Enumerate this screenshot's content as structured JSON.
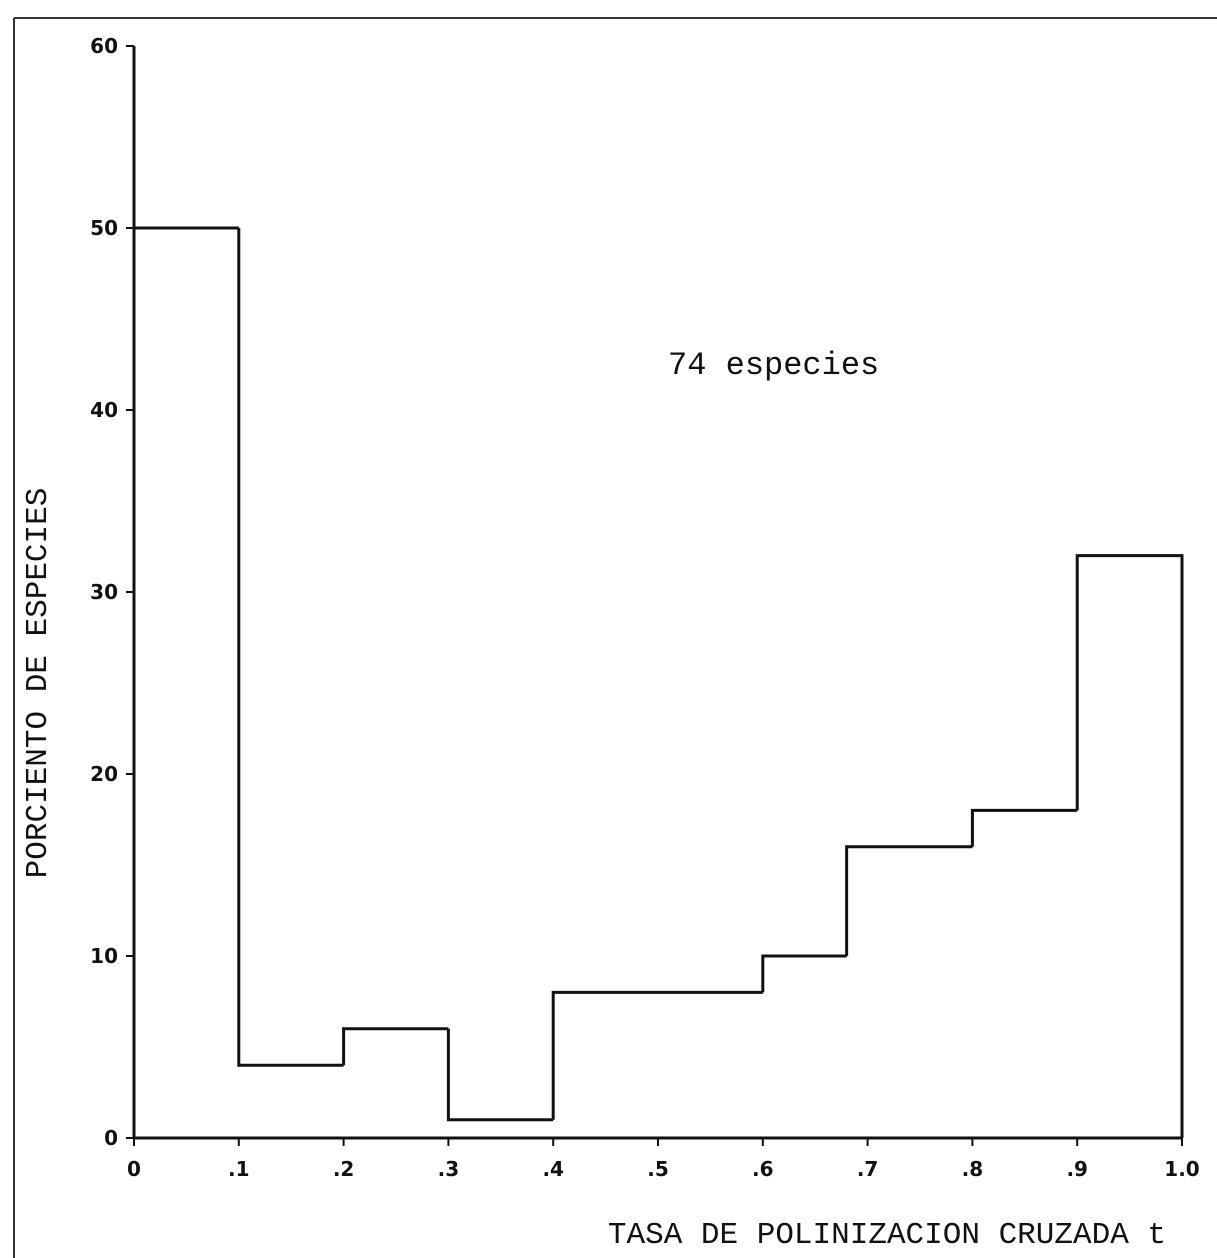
{
  "chart_data": {
    "type": "bar",
    "bin_edges": [
      0,
      0.1,
      0.2,
      0.3,
      0.4,
      0.6,
      0.68,
      0.8,
      0.9,
      1.0
    ],
    "values": [
      50,
      4,
      6,
      1,
      8,
      10,
      16,
      18,
      32
    ],
    "xlim": [
      0,
      1.0
    ],
    "ylim": [
      0,
      60
    ],
    "x_ticks": [
      {
        "value": 0,
        "label": "0"
      },
      {
        "value": 0.1,
        "label": ".1"
      },
      {
        "value": 0.2,
        "label": ".2"
      },
      {
        "value": 0.3,
        "label": ".3"
      },
      {
        "value": 0.4,
        "label": ".4"
      },
      {
        "value": 0.5,
        "label": ".5"
      },
      {
        "value": 0.6,
        "label": ".6"
      },
      {
        "value": 0.7,
        "label": ".7"
      },
      {
        "value": 0.8,
        "label": ".8"
      },
      {
        "value": 0.9,
        "label": ".9"
      },
      {
        "value": 1.0,
        "label": "1.0"
      }
    ],
    "y_ticks": [
      {
        "value": 0,
        "label": "0"
      },
      {
        "value": 10,
        "label": "10"
      },
      {
        "value": 20,
        "label": "20"
      },
      {
        "value": 30,
        "label": "30"
      },
      {
        "value": 40,
        "label": "40"
      },
      {
        "value": 50,
        "label": "50"
      },
      {
        "value": 60,
        "label": "60"
      }
    ],
    "xlabel": "TASA DE POLINIZACION CRUZADA t",
    "ylabel": "PORCIENTO DE ESPECIES",
    "annotation": "74 especies",
    "grid": false
  }
}
